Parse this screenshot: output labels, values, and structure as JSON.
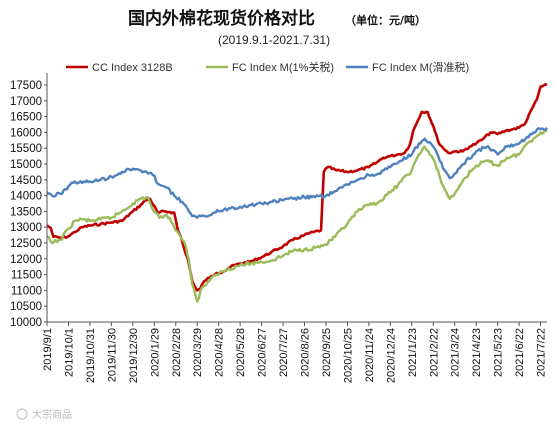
{
  "chart_data": {
    "type": "line",
    "title": "国内外棉花现货价格对比",
    "unit_note": "（单位：元/吨）",
    "subtitle": "(2019.9.1-2021.7.31)",
    "watermark": "大宗商品",
    "ylim": [
      10000,
      17500
    ],
    "yticks": [
      10000,
      10500,
      11000,
      11500,
      12000,
      12500,
      13000,
      13500,
      14000,
      14500,
      15000,
      15500,
      16000,
      16500,
      17000,
      17500
    ],
    "x_range": [
      "2019/9/1",
      "2021/7/31"
    ],
    "xtick_labels": [
      "2019/9/1",
      "2019/10/1",
      "2019/10/31",
      "2019/11/30",
      "2019/12/30",
      "2020/1/29",
      "2020/2/28",
      "2020/3/29",
      "2020/4/28",
      "2020/5/28",
      "2020/6/27",
      "2020/7/27",
      "2020/8/26",
      "2020/9/25",
      "2020/10/25",
      "2020/11/24",
      "2020/12/24",
      "2021/1/23",
      "2021/2/22",
      "2021/3/24",
      "2021/4/23",
      "2021/5/23",
      "2021/6/22",
      "2021/7/22"
    ],
    "legend_position": "top",
    "grid": false,
    "series": [
      {
        "name": "CC Index 3128B",
        "color": "#c00000",
        "points": [
          [
            "2019/9/1",
            13050
          ],
          [
            "2019/9/6",
            12980
          ],
          [
            "2019/9/10",
            12700
          ],
          [
            "2019/9/20",
            12660
          ],
          [
            "2019/9/30",
            12700
          ],
          [
            "2019/10/10",
            12850
          ],
          [
            "2019/10/20",
            13000
          ],
          [
            "2019/10/31",
            13050
          ],
          [
            "2019/11/15",
            13100
          ],
          [
            "2019/11/30",
            13150
          ],
          [
            "2019/12/15",
            13200
          ],
          [
            "2019/12/30",
            13500
          ],
          [
            "2020/1/10",
            13700
          ],
          [
            "2020/1/17",
            13850
          ],
          [
            "2020/1/23",
            13900
          ],
          [
            "2020/2/3",
            13450
          ],
          [
            "2020/2/12",
            13500
          ],
          [
            "2020/2/20",
            13480
          ],
          [
            "2020/2/26",
            13450
          ],
          [
            "2020/3/2",
            12900
          ],
          [
            "2020/3/6",
            12700
          ],
          [
            "2020/3/11",
            12300
          ],
          [
            "2020/3/16",
            12000
          ],
          [
            "2020/3/22",
            11300
          ],
          [
            "2020/3/26",
            11100
          ],
          [
            "2020/3/29",
            11000
          ],
          [
            "2020/4/2",
            11050
          ],
          [
            "2020/4/8",
            11300
          ],
          [
            "2020/4/15",
            11400
          ],
          [
            "2020/4/25",
            11550
          ],
          [
            "2020/5/5",
            11600
          ],
          [
            "2020/5/15",
            11750
          ],
          [
            "2020/5/28",
            11850
          ],
          [
            "2020/6/10",
            11900
          ],
          [
            "2020/6/27",
            12050
          ],
          [
            "2020/7/10",
            12200
          ],
          [
            "2020/7/27",
            12400
          ],
          [
            "2020/8/10",
            12600
          ],
          [
            "2020/8/26",
            12750
          ],
          [
            "2020/9/8",
            12850
          ],
          [
            "2020/9/18",
            12900
          ],
          [
            "2020/9/22",
            14750
          ],
          [
            "2020/9/27",
            14900
          ],
          [
            "2020/10/10",
            14800
          ],
          [
            "2020/10/25",
            14750
          ],
          [
            "2020/11/8",
            14800
          ],
          [
            "2020/11/24",
            14900
          ],
          [
            "2020/12/5",
            15050
          ],
          [
            "2020/12/14",
            15200
          ],
          [
            "2020/12/24",
            15250
          ],
          [
            "2021/1/3",
            15300
          ],
          [
            "2021/1/13",
            15350
          ],
          [
            "2021/1/20",
            15600
          ],
          [
            "2021/1/25",
            16050
          ],
          [
            "2021/2/1",
            16400
          ],
          [
            "2021/2/6",
            16650
          ],
          [
            "2021/2/14",
            16650
          ],
          [
            "2021/2/22",
            16200
          ],
          [
            "2021/3/1",
            15700
          ],
          [
            "2021/3/8",
            15500
          ],
          [
            "2021/3/15",
            15350
          ],
          [
            "2021/3/24",
            15400
          ],
          [
            "2021/4/4",
            15400
          ],
          [
            "2021/4/14",
            15550
          ],
          [
            "2021/4/23",
            15650
          ],
          [
            "2021/5/3",
            15800
          ],
          [
            "2021/5/13",
            16000
          ],
          [
            "2021/5/23",
            15950
          ],
          [
            "2021/6/3",
            16050
          ],
          [
            "2021/6/13",
            16100
          ],
          [
            "2021/6/22",
            16150
          ],
          [
            "2021/7/1",
            16300
          ],
          [
            "2021/7/10",
            16750
          ],
          [
            "2021/7/17",
            17050
          ],
          [
            "2021/7/22",
            17450
          ],
          [
            "2021/7/31",
            17500
          ]
        ]
      },
      {
        "name": "FC Index M(1%关税)",
        "color": "#9bbb59",
        "points": [
          [
            "2019/9/1",
            12700
          ],
          [
            "2019/9/8",
            12500
          ],
          [
            "2019/9/20",
            12600
          ],
          [
            "2019/10/1",
            12950
          ],
          [
            "2019/10/10",
            13200
          ],
          [
            "2019/10/20",
            13250
          ],
          [
            "2019/10/31",
            13200
          ],
          [
            "2019/11/15",
            13250
          ],
          [
            "2019/11/30",
            13300
          ],
          [
            "2019/12/15",
            13500
          ],
          [
            "2019/12/30",
            13750
          ],
          [
            "2020/1/10",
            13900
          ],
          [
            "2020/1/20",
            13950
          ],
          [
            "2020/1/27",
            13550
          ],
          [
            "2020/2/5",
            13300
          ],
          [
            "2020/2/15",
            13400
          ],
          [
            "2020/2/24",
            13100
          ],
          [
            "2020/3/3",
            12800
          ],
          [
            "2020/3/8",
            12600
          ],
          [
            "2020/3/13",
            12400
          ],
          [
            "2020/3/17",
            12000
          ],
          [
            "2020/3/22",
            11200
          ],
          [
            "2020/3/26",
            10900
          ],
          [
            "2020/3/29",
            10650
          ],
          [
            "2020/4/5",
            11100
          ],
          [
            "2020/4/15",
            11300
          ],
          [
            "2020/4/25",
            11500
          ],
          [
            "2020/5/8",
            11650
          ],
          [
            "2020/5/28",
            11800
          ],
          [
            "2020/6/12",
            11850
          ],
          [
            "2020/6/27",
            11900
          ],
          [
            "2020/7/12",
            11950
          ],
          [
            "2020/7/27",
            12100
          ],
          [
            "2020/8/10",
            12250
          ],
          [
            "2020/8/26",
            12300
          ],
          [
            "2020/9/10",
            12350
          ],
          [
            "2020/9/25",
            12450
          ],
          [
            "2020/10/8",
            12700
          ],
          [
            "2020/10/25",
            13100
          ],
          [
            "2020/11/8",
            13500
          ],
          [
            "2020/11/24",
            13700
          ],
          [
            "2020/12/8",
            13800
          ],
          [
            "2020/12/24",
            14100
          ],
          [
            "2021/1/8",
            14450
          ],
          [
            "2021/1/23",
            14800
          ],
          [
            "2021/2/2",
            15300
          ],
          [
            "2021/2/10",
            15550
          ],
          [
            "2021/2/22",
            15150
          ],
          [
            "2021/3/3",
            14600
          ],
          [
            "2021/3/10",
            14200
          ],
          [
            "2021/3/17",
            13900
          ],
          [
            "2021/3/24",
            14050
          ],
          [
            "2021/4/5",
            14500
          ],
          [
            "2021/4/23",
            14950
          ],
          [
            "2021/5/8",
            15100
          ],
          [
            "2021/5/23",
            14950
          ],
          [
            "2021/6/5",
            15200
          ],
          [
            "2021/6/22",
            15300
          ],
          [
            "2021/7/3",
            15650
          ],
          [
            "2021/7/12",
            15800
          ],
          [
            "2021/7/22",
            16000
          ],
          [
            "2021/7/31",
            16050
          ]
        ]
      },
      {
        "name": "FC Index M(滑准税)",
        "color": "#4f81bd",
        "points": [
          [
            "2019/9/1",
            14100
          ],
          [
            "2019/9/8",
            14000
          ],
          [
            "2019/9/20",
            14050
          ],
          [
            "2019/10/1",
            14300
          ],
          [
            "2019/10/10",
            14450
          ],
          [
            "2019/10/20",
            14400
          ],
          [
            "2019/10/31",
            14450
          ],
          [
            "2019/11/15",
            14500
          ],
          [
            "2019/11/30",
            14600
          ],
          [
            "2019/12/15",
            14750
          ],
          [
            "2019/12/30",
            14850
          ],
          [
            "2020/1/10",
            14800
          ],
          [
            "2020/1/20",
            14700
          ],
          [
            "2020/1/27",
            14650
          ],
          [
            "2020/2/5",
            14350
          ],
          [
            "2020/2/15",
            14250
          ],
          [
            "2020/2/28",
            13950
          ],
          [
            "2020/3/8",
            13800
          ],
          [
            "2020/3/15",
            13600
          ],
          [
            "2020/3/22",
            13350
          ],
          [
            "2020/3/29",
            13300
          ],
          [
            "2020/4/8",
            13350
          ],
          [
            "2020/4/20",
            13450
          ],
          [
            "2020/4/28",
            13500
          ],
          [
            "2020/5/12",
            13600
          ],
          [
            "2020/5/28",
            13650
          ],
          [
            "2020/6/12",
            13700
          ],
          [
            "2020/6/27",
            13750
          ],
          [
            "2020/7/12",
            13800
          ],
          [
            "2020/7/27",
            13850
          ],
          [
            "2020/8/10",
            13900
          ],
          [
            "2020/8/26",
            13950
          ],
          [
            "2020/9/10",
            13950
          ],
          [
            "2020/9/25",
            14000
          ],
          [
            "2020/10/10",
            14150
          ],
          [
            "2020/10/25",
            14350
          ],
          [
            "2020/11/8",
            14500
          ],
          [
            "2020/11/24",
            14650
          ],
          [
            "2020/12/8",
            14700
          ],
          [
            "2020/12/24",
            14900
          ],
          [
            "2021/1/8",
            15100
          ],
          [
            "2021/1/23",
            15300
          ],
          [
            "2021/2/2",
            15650
          ],
          [
            "2021/2/10",
            15800
          ],
          [
            "2021/2/22",
            15550
          ],
          [
            "2021/3/3",
            15100
          ],
          [
            "2021/3/10",
            14800
          ],
          [
            "2021/3/17",
            14550
          ],
          [
            "2021/3/24",
            14700
          ],
          [
            "2021/4/5",
            15000
          ],
          [
            "2021/4/23",
            15400
          ],
          [
            "2021/5/8",
            15550
          ],
          [
            "2021/5/23",
            15300
          ],
          [
            "2021/6/5",
            15550
          ],
          [
            "2021/6/22",
            15650
          ],
          [
            "2021/7/3",
            15850
          ],
          [
            "2021/7/12",
            16000
          ],
          [
            "2021/7/22",
            16100
          ],
          [
            "2021/7/31",
            16150
          ]
        ]
      }
    ]
  }
}
